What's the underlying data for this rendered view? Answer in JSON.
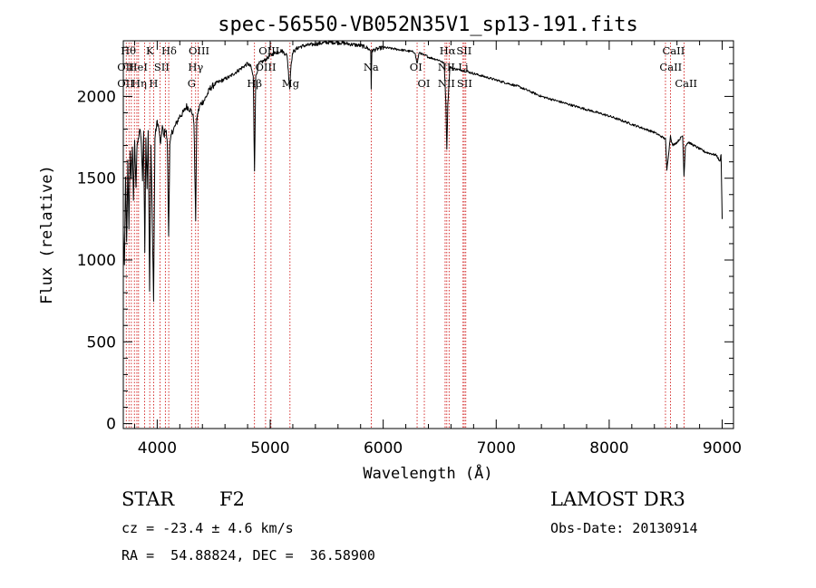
{
  "chart_data": {
    "type": "line",
    "title": "spec-56550-VB052N35V1_sp13-191.fits",
    "xlabel": "Wavelength (Å)",
    "ylabel": "Flux (relative)",
    "xlim": [
      3700,
      9100
    ],
    "ylim": [
      -30,
      2340
    ],
    "xticks": [
      4000,
      5000,
      6000,
      7000,
      8000,
      9000
    ],
    "yticks": [
      0,
      500,
      1000,
      1500,
      2000
    ],
    "xtick_labels": [
      "4000",
      "5000",
      "6000",
      "7000",
      "8000",
      "9000"
    ],
    "ytick_labels": [
      "0",
      "500",
      "1000",
      "1500",
      "2000"
    ],
    "grid": false,
    "series": [
      {
        "name": "flux",
        "x": [
          3700,
          3710,
          3720,
          3730,
          3740,
          3750,
          3760,
          3770,
          3780,
          3790,
          3800,
          3812,
          3820,
          3835,
          3850,
          3860,
          3870,
          3880,
          3890,
          3900,
          3910,
          3920,
          3933,
          3945,
          3955,
          3968,
          3980,
          3990,
          4000,
          4015,
          4030,
          4045,
          4060,
          4070,
          4080,
          4090,
          4101,
          4112,
          4130,
          4160,
          4200,
          4230,
          4260,
          4290,
          4310,
          4325,
          4340,
          4350,
          4360,
          4380,
          4420,
          4470,
          4520,
          4580,
          4640,
          4700,
          4760,
          4800,
          4830,
          4850,
          4861,
          4872,
          4900,
          4950,
          5000,
          5050,
          5100,
          5150,
          5172,
          5185,
          5200,
          5250,
          5300,
          5400,
          5500,
          5600,
          5700,
          5800,
          5850,
          5890,
          5894,
          5900,
          5950,
          6000,
          6100,
          6200,
          6280,
          6300,
          6320,
          6340,
          6360,
          6380,
          6400,
          6450,
          6500,
          6540,
          6555,
          6563,
          6572,
          6590,
          6620,
          6700,
          6800,
          6900,
          7000,
          7200,
          7400,
          7600,
          7800,
          8000,
          8200,
          8400,
          8498,
          8510,
          8542,
          8560,
          8600,
          8650,
          8662,
          8675,
          8700,
          8750,
          8800,
          8850,
          8900,
          8950,
          8980,
          8990,
          9000
        ],
        "y": [
          1180,
          950,
          1520,
          1100,
          1600,
          1200,
          1650,
          1500,
          1700,
          1350,
          1720,
          1450,
          1680,
          1750,
          1800,
          1700,
          1500,
          1780,
          1050,
          1750,
          1450,
          1800,
          820,
          1700,
          1300,
          750,
          1750,
          1800,
          1850,
          1800,
          1700,
          1820,
          1750,
          1800,
          1780,
          1700,
          1150,
          1700,
          1780,
          1820,
          1880,
          1900,
          1940,
          1920,
          1900,
          1850,
          1250,
          1850,
          1900,
          1950,
          1980,
          2050,
          2080,
          2100,
          2120,
          2150,
          2180,
          2200,
          2180,
          2120,
          1550,
          2120,
          2200,
          2220,
          2250,
          2270,
          2280,
          2250,
          2050,
          2200,
          2270,
          2300,
          2310,
          2320,
          2330,
          2330,
          2320,
          2310,
          2300,
          2280,
          2050,
          2280,
          2290,
          2300,
          2290,
          2280,
          2270,
          2200,
          2270,
          2260,
          2250,
          2250,
          2240,
          2230,
          2220,
          2200,
          1950,
          1680,
          1950,
          2180,
          2170,
          2160,
          2140,
          2120,
          2100,
          2060,
          2000,
          1960,
          1920,
          1880,
          1830,
          1780,
          1740,
          1550,
          1760,
          1700,
          1720,
          1760,
          1520,
          1700,
          1720,
          1700,
          1680,
          1660,
          1650,
          1640,
          1600,
          1650,
          1250
        ]
      }
    ],
    "lines": [
      {
        "wave": 3726,
        "labels": [
          "OII"
        ]
      },
      {
        "wave": 3750,
        "labels": [
          "OII"
        ]
      },
      {
        "wave": 3771,
        "labels": [
          "Hθ"
        ]
      },
      {
        "wave": 3798,
        "labels": [
          "Hθ"
        ]
      },
      {
        "wave": 3820,
        "labels": [
          "HeI"
        ]
      },
      {
        "wave": 3835,
        "labels": [
          "Hη"
        ]
      },
      {
        "wave": 3889,
        "labels": [
          "Hη"
        ]
      },
      {
        "wave": 3934,
        "labels": [
          "K"
        ]
      },
      {
        "wave": 3968,
        "labels": [
          "H"
        ]
      },
      {
        "wave": 4026,
        "labels": [
          "HeI"
        ]
      },
      {
        "wave": 4072,
        "labels": [
          "SII"
        ]
      },
      {
        "wave": 4102,
        "labels": [
          "Hδ"
        ]
      },
      {
        "wave": 4304,
        "labels": [
          "G"
        ]
      },
      {
        "wave": 4340,
        "labels": [
          "Hγ"
        ]
      },
      {
        "wave": 4363,
        "labels": [
          "OIII"
        ]
      },
      {
        "wave": 4861,
        "labels": [
          "Hβ"
        ]
      },
      {
        "wave": 4959,
        "labels": [
          "OIII"
        ]
      },
      {
        "wave": 5007,
        "labels": [
          "OIII"
        ]
      },
      {
        "wave": 5175,
        "labels": [
          "Mg"
        ]
      },
      {
        "wave": 5894,
        "labels": [
          "Na"
        ]
      },
      {
        "wave": 6300,
        "labels": [
          "OI"
        ]
      },
      {
        "wave": 6364,
        "labels": [
          "OI"
        ]
      },
      {
        "wave": 6548,
        "labels": [
          "NII"
        ]
      },
      {
        "wave": 6563,
        "labels": [
          "Hα"
        ]
      },
      {
        "wave": 6583,
        "labels": [
          "NII"
        ]
      },
      {
        "wave": 6707,
        "labels": [
          "Li"
        ]
      },
      {
        "wave": 6717,
        "labels": [
          "SII"
        ]
      },
      {
        "wave": 6731,
        "labels": [
          "SII"
        ]
      },
      {
        "wave": 8498,
        "labels": [
          "CaII"
        ]
      },
      {
        "wave": 8542,
        "labels": [
          "CaII"
        ]
      },
      {
        "wave": 8662,
        "labels": [
          "CaII"
        ]
      }
    ],
    "line_label_rows": [
      [
        {
          "text": "Hθ",
          "x": 3745
        },
        {
          "text": "K",
          "x": 3935
        },
        {
          "text": "Hδ",
          "x": 4105
        },
        {
          "text": "OIII",
          "x": 4370
        },
        {
          "text": "OIII",
          "x": 4990
        },
        {
          "text": "Hα",
          "x": 6570
        },
        {
          "text": "SII",
          "x": 6715
        },
        {
          "text": "CaII",
          "x": 8570
        }
      ],
      [
        {
          "text": "OII",
          "x": 3720
        },
        {
          "text": "HeI",
          "x": 3830
        },
        {
          "text": "SII",
          "x": 4040
        },
        {
          "text": "Hγ",
          "x": 4340
        },
        {
          "text": "OIII",
          "x": 4960
        },
        {
          "text": "Na",
          "x": 5893
        },
        {
          "text": "OI",
          "x": 6290
        },
        {
          "text": "NII",
          "x": 6560
        },
        {
          "text": "Li",
          "x": 6710
        },
        {
          "text": "CaII",
          "x": 8545
        }
      ],
      [
        {
          "text": "OII",
          "x": 3720
        },
        {
          "text": "Hη",
          "x": 3840
        },
        {
          "text": "H",
          "x": 3968
        },
        {
          "text": "G",
          "x": 4304
        },
        {
          "text": "Hβ",
          "x": 4861
        },
        {
          "text": "Mg",
          "x": 5180
        },
        {
          "text": "OI",
          "x": 6360
        },
        {
          "text": "NII",
          "x": 6560
        },
        {
          "text": "SII",
          "x": 6720
        },
        {
          "text": "CaII",
          "x": 8680
        }
      ]
    ]
  },
  "info": {
    "object_class": "STAR",
    "subclass": "F2",
    "survey": "LAMOST DR3",
    "cz": "cz = -23.4 ± 4.6 km/s",
    "obs_date": "Obs-Date: 20130914",
    "coords": "RA =  54.88824, DEC =  36.58900"
  },
  "colors": {
    "spectrum": "#000000",
    "line_markers": "#cc0000",
    "axes": "#000000"
  }
}
